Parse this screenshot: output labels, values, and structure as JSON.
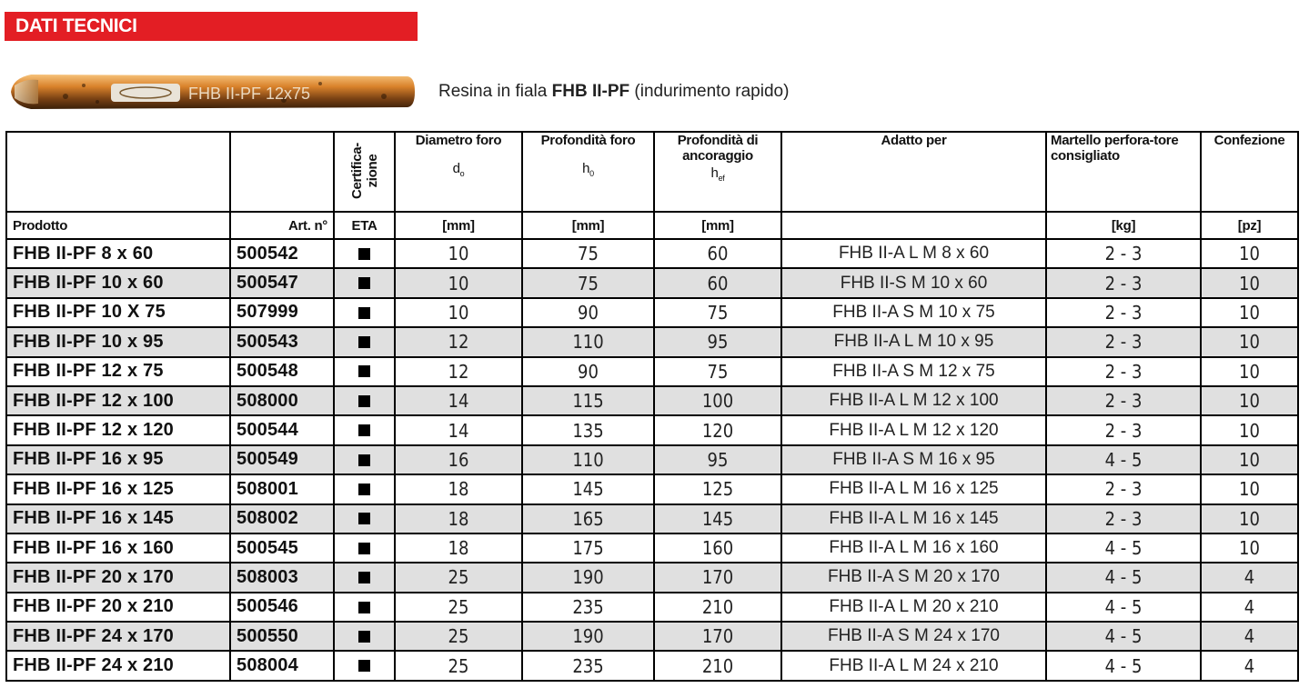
{
  "section_title": "DATI TECNICI",
  "product_image": {
    "label": "FHB II-PF 12x75"
  },
  "product_desc": {
    "prefix": "Resina in fiala ",
    "name": "FHB II-PF",
    "suffix": " (indurimento rapido)"
  },
  "headers": {
    "prodotto": "Prodotto",
    "art": "Art. n°",
    "cert": "Certifica-\nzione",
    "eta": "ETA",
    "diametro": "Diametro foro",
    "diametro_sym": "d",
    "diametro_sub": "o",
    "profondita": "Profondità foro",
    "profondita_sym": "h",
    "profondita_sub": "0",
    "ancoraggio": "Profondità di ancoraggio",
    "ancoraggio_sym": "h",
    "ancoraggio_sub": "ef",
    "adatto": "Adatto per",
    "martello": "Martello perfora-tore consigliato",
    "confezione": "Confezione",
    "unit_mm": "[mm]",
    "unit_kg": "[kg]",
    "unit_pz": "[pz]"
  },
  "rows": [
    {
      "prodotto": "FHB II-PF 8 x 60",
      "art": "500542",
      "d": "10",
      "h0": "75",
      "hef": "60",
      "adatto": "FHB II-A L M 8 x 60",
      "kg": "2 - 3",
      "pz": "10"
    },
    {
      "prodotto": "FHB II-PF 10 x 60",
      "art": "500547",
      "d": "10",
      "h0": "75",
      "hef": "60",
      "adatto": "FHB II-S M 10 x 60",
      "kg": "2 - 3",
      "pz": "10"
    },
    {
      "prodotto": "FHB II-PF 10 X 75",
      "art": "507999",
      "d": "10",
      "h0": "90",
      "hef": "75",
      "adatto": "FHB II-A S M 10 x 75",
      "kg": "2 - 3",
      "pz": "10"
    },
    {
      "prodotto": "FHB II-PF 10 x 95",
      "art": "500543",
      "d": "12",
      "h0": "110",
      "hef": "95",
      "adatto": "FHB II-A L M 10 x 95",
      "kg": "2 - 3",
      "pz": "10"
    },
    {
      "prodotto": "FHB II-PF 12 x 75",
      "art": "500548",
      "d": "12",
      "h0": "90",
      "hef": "75",
      "adatto": "FHB II-A S M 12 x 75",
      "kg": "2 - 3",
      "pz": "10"
    },
    {
      "prodotto": "FHB II-PF 12 x 100",
      "art": "508000",
      "d": "14",
      "h0": "115",
      "hef": "100",
      "adatto": "FHB II-A L M 12 x 100",
      "kg": "2 - 3",
      "pz": "10"
    },
    {
      "prodotto": "FHB II-PF 12 x 120",
      "art": "500544",
      "d": "14",
      "h0": "135",
      "hef": "120",
      "adatto": "FHB II-A L M 12 x 120",
      "kg": "2 - 3",
      "pz": "10"
    },
    {
      "prodotto": "FHB II-PF 16 x 95",
      "art": "500549",
      "d": "16",
      "h0": "110",
      "hef": "95",
      "adatto": "FHB II-A S M 16 x 95",
      "kg": "4 - 5",
      "pz": "10"
    },
    {
      "prodotto": "FHB II-PF 16 x 125",
      "art": "508001",
      "d": "18",
      "h0": "145",
      "hef": "125",
      "adatto": "FHB II-A L M 16 x 125",
      "kg": "2 - 3",
      "pz": "10"
    },
    {
      "prodotto": "FHB II-PF 16 x 145",
      "art": "508002",
      "d": "18",
      "h0": "165",
      "hef": "145",
      "adatto": "FHB II-A L M 16 x 145",
      "kg": "2 - 3",
      "pz": "10"
    },
    {
      "prodotto": "FHB II-PF 16 x 160",
      "art": "500545",
      "d": "18",
      "h0": "175",
      "hef": "160",
      "adatto": "FHB II-A L M 16 x 160",
      "kg": "4 - 5",
      "pz": "10"
    },
    {
      "prodotto": "FHB II-PF 20 x 170",
      "art": "508003",
      "d": "25",
      "h0": "190",
      "hef": "170",
      "adatto": "FHB II-A S M 20 x 170",
      "kg": "4 - 5",
      "pz": "4"
    },
    {
      "prodotto": "FHB II-PF 20 x 210",
      "art": "500546",
      "d": "25",
      "h0": "235",
      "hef": "210",
      "adatto": "FHB II-A L M 20 x 210",
      "kg": "4 - 5",
      "pz": "4"
    },
    {
      "prodotto": "FHB II-PF 24 x 170",
      "art": "500550",
      "d": "25",
      "h0": "190",
      "hef": "170",
      "adatto": "FHB II-A S M 24 x 170",
      "kg": "4 - 5",
      "pz": "4"
    },
    {
      "prodotto": "FHB II-PF 24 x 210",
      "art": "508004",
      "d": "25",
      "h0": "235",
      "hef": "210",
      "adatto": "FHB II-A L M 24 x 210",
      "kg": "4 - 5",
      "pz": "4"
    }
  ],
  "colors": {
    "accent_red": "#e31e24",
    "row_shade": "#e0e0e0",
    "capsule_orange": "#d9822b"
  }
}
